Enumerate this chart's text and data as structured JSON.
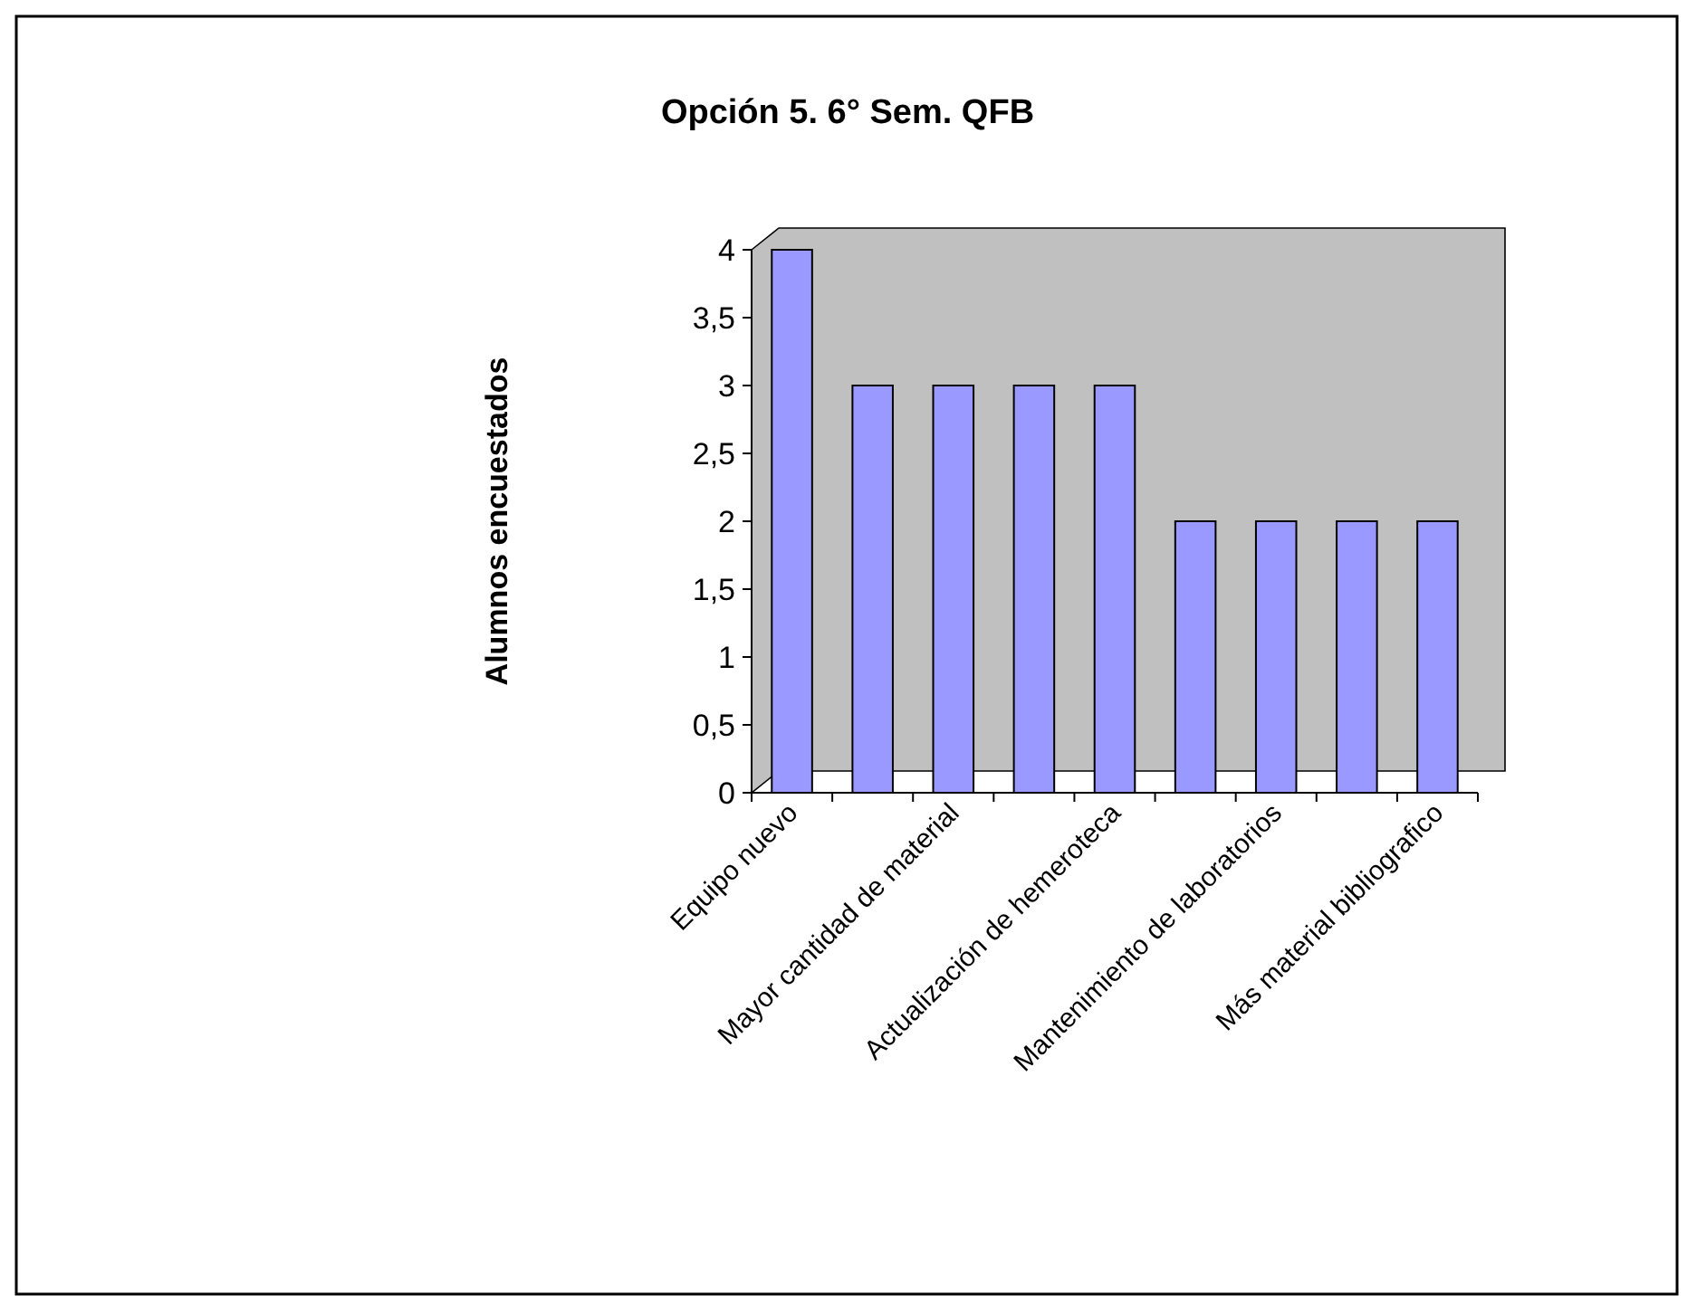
{
  "chart_data": {
    "type": "bar",
    "title": "Opción 5. 6° Sem. QFB",
    "ylabel": "Alumnos encuestados",
    "categories": [
      "Equipo nuevo",
      null,
      "Mayor cantidad de material",
      null,
      "Actualización de hemeroteca",
      null,
      "Mantenimiento de laboratorios",
      null,
      "Más material bibliografico"
    ],
    "values": [
      4,
      3,
      3,
      3,
      3,
      2,
      2,
      2,
      2
    ],
    "color": "#9999ff",
    "ylim": [
      0,
      4
    ],
    "yticks": [
      0,
      {
        "value": 0.5,
        "label": "0,5"
      },
      1,
      {
        "value": 1.5,
        "label": "1,5"
      },
      2,
      {
        "value": 2.5,
        "label": "2,5"
      },
      3,
      {
        "value": 3.5,
        "label": "3,5"
      },
      4
    ],
    "grid": false
  }
}
